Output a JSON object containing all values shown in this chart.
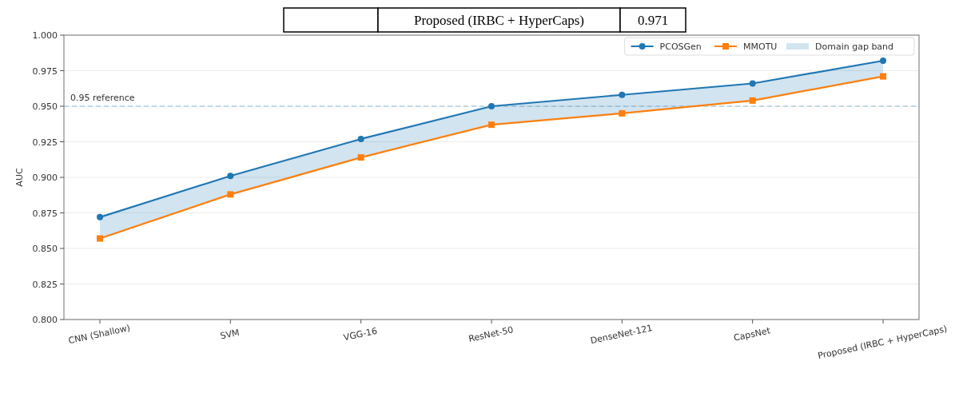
{
  "chart_data": {
    "type": "line",
    "ylabel": "AUC",
    "categories": [
      "CNN (Shallow)",
      "SVM",
      "VGG-16",
      "ResNet-50",
      "DenseNet-121",
      "CapsNet",
      "Proposed (IRBC + HyperCaps)"
    ],
    "series": [
      {
        "name": "PCOSGen",
        "color": "#1f77b4",
        "values": [
          0.872,
          0.901,
          0.927,
          0.95,
          0.958,
          0.966,
          0.982
        ],
        "lower": [
          0.857,
          0.888,
          0.914,
          0.937,
          0.945,
          0.954,
          0.971
        ],
        "upper": [
          0.872,
          0.901,
          0.927,
          0.95,
          0.958,
          0.966,
          0.982
        ]
      },
      {
        "name": "MMOTU",
        "color": "#ff7f0e",
        "marker": "square",
        "values": [
          0.857,
          0.888,
          0.914,
          0.937,
          0.945,
          0.954,
          0.971
        ]
      }
    ],
    "ylim": [
      0.8,
      1.0
    ],
    "yticks": [
      {
        "value": 0.8,
        "label": "0.800"
      },
      {
        "value": 0.825,
        "label": "0.825"
      },
      {
        "value": 0.85,
        "label": "0.850"
      },
      {
        "value": 0.875,
        "label": "0.875"
      },
      {
        "value": 0.9,
        "label": "0.900"
      },
      {
        "value": 0.925,
        "label": "0.925"
      },
      {
        "value": 0.95,
        "label": "0.950"
      },
      {
        "value": 0.975,
        "label": "0.975"
      },
      {
        "value": 1.0,
        "label": "1.000"
      }
    ],
    "grid": "y",
    "legend": "top right",
    "marker": "circle",
    "line_style": "solid",
    "ref_lines": [
      {
        "axis": "y",
        "value": 0.95,
        "label": "0.95 reference",
        "color": "#5fa2d0",
        "line_style": "dashed"
      }
    ],
    "annotations": [
      "Proposed (IRBC + HyperCaps)",
      "0.971",
      "Domain gap band"
    ]
  }
}
